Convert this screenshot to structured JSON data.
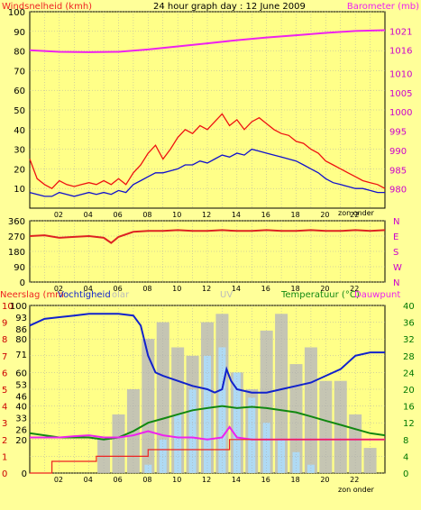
{
  "header": {
    "left_label": "Windsnelheid (kmh)",
    "title": "24 hour graph day : 12 June 2009",
    "right_label": "Barometer (mb)"
  },
  "colors": {
    "background": "#ffff99",
    "plot_bg": "#ffff88",
    "grid": "#aaaaaa",
    "wind_gust": "#ee1111",
    "wind_avg": "#1111cc",
    "barometer": "#ee22ee",
    "wind_dir": "#dd2222",
    "humidity": "#1122cc",
    "temperature": "#118811",
    "dewpoint": "#ee22ee",
    "rain": "#ee2222",
    "solar": "#bbbbbb",
    "uv": "#aaddff",
    "right_axis_text": "#cc00cc",
    "green_axis_text": "#007700"
  },
  "chart_data": [
    {
      "type": "line",
      "x_ticks": [
        "02",
        "04",
        "06",
        "08",
        "10",
        "12",
        "14",
        "16",
        "18",
        "20",
        "22"
      ],
      "x_end_label": "zon onder",
      "x_range_hours": [
        0,
        24
      ],
      "y_left": {
        "label": "Windsnelheid (kmh)",
        "ticks": [
          10,
          20,
          30,
          40,
          50,
          60,
          70,
          80,
          90,
          100
        ],
        "ylim": [
          0,
          100
        ]
      },
      "y_right": {
        "label": "Barometer (mb)",
        "ticks": [
          980,
          985,
          990,
          995,
          1000,
          1005,
          1010,
          1016,
          1021
        ],
        "ylim": [
          975,
          1026
        ]
      },
      "series": [
        {
          "name": "gust",
          "axis": "left",
          "hours": [
            0,
            0.5,
            1,
            1.5,
            2,
            2.5,
            3,
            3.5,
            4,
            4.5,
            5,
            5.5,
            6,
            6.5,
            7,
            7.5,
            8,
            8.5,
            9,
            9.5,
            10,
            10.5,
            11,
            11.5,
            12,
            12.5,
            13,
            13.5,
            14,
            14.5,
            15,
            15.5,
            16,
            16.5,
            17,
            17.5,
            18,
            18.5,
            19,
            19.5,
            20,
            20.5,
            21,
            21.5,
            22,
            22.5,
            23,
            23.5,
            24
          ],
          "values": [
            25,
            15,
            12,
            10,
            14,
            12,
            11,
            12,
            13,
            12,
            14,
            12,
            15,
            12,
            18,
            22,
            28,
            32,
            25,
            30,
            36,
            40,
            38,
            42,
            40,
            44,
            48,
            42,
            45,
            40,
            44,
            46,
            43,
            40,
            38,
            37,
            34,
            33,
            30,
            28,
            24,
            22,
            20,
            18,
            16,
            14,
            13,
            12,
            10
          ]
        },
        {
          "name": "average",
          "axis": "left",
          "hours": [
            0,
            0.5,
            1,
            1.5,
            2,
            2.5,
            3,
            3.5,
            4,
            4.5,
            5,
            5.5,
            6,
            6.5,
            7,
            7.5,
            8,
            8.5,
            9,
            9.5,
            10,
            10.5,
            11,
            11.5,
            12,
            12.5,
            13,
            13.5,
            14,
            14.5,
            15,
            15.5,
            16,
            16.5,
            17,
            17.5,
            18,
            18.5,
            19,
            19.5,
            20,
            20.5,
            21,
            21.5,
            22,
            22.5,
            23,
            23.5,
            24
          ],
          "values": [
            8,
            7,
            6,
            6,
            8,
            7,
            6,
            7,
            8,
            7,
            8,
            7,
            9,
            8,
            12,
            14,
            16,
            18,
            18,
            19,
            20,
            22,
            22,
            24,
            23,
            25,
            27,
            26,
            28,
            27,
            30,
            29,
            28,
            27,
            26,
            25,
            24,
            22,
            20,
            18,
            15,
            13,
            12,
            11,
            10,
            10,
            9,
            8,
            8
          ]
        },
        {
          "name": "barometer",
          "axis": "right",
          "hours": [
            0,
            2,
            4,
            6,
            8,
            10,
            12,
            14,
            16,
            18,
            20,
            22,
            24
          ],
          "values": [
            1016,
            1015.6,
            1015.5,
            1015.6,
            1016.2,
            1017,
            1017.8,
            1018.6,
            1019.3,
            1019.9,
            1020.5,
            1021,
            1021.2
          ]
        }
      ]
    },
    {
      "type": "line",
      "x_ticks": [
        "02",
        "04",
        "06",
        "08",
        "10",
        "12",
        "14",
        "16",
        "18",
        "20",
        "22"
      ],
      "y_left": {
        "ticks": [
          0,
          90,
          180,
          270,
          360
        ],
        "ylim": [
          0,
          360
        ]
      },
      "y_right": {
        "ticks": [
          "N",
          "W",
          "S",
          "E",
          "N"
        ]
      },
      "series": [
        {
          "name": "wind direction",
          "hours": [
            0,
            1,
            2,
            3,
            4,
            5,
            5.5,
            6,
            7,
            8,
            9,
            10,
            11,
            12,
            13,
            14,
            15,
            16,
            17,
            18,
            19,
            20,
            21,
            22,
            23,
            24
          ],
          "values": [
            270,
            275,
            260,
            265,
            270,
            260,
            230,
            265,
            295,
            300,
            300,
            305,
            300,
            300,
            305,
            300,
            300,
            305,
            300,
            300,
            305,
            300,
            300,
            305,
            300,
            305
          ]
        }
      ]
    },
    {
      "type": "line",
      "x_ticks": [
        "02",
        "04",
        "06",
        "08",
        "10",
        "12",
        "14",
        "16",
        "18",
        "20",
        "22"
      ],
      "x_end_label": "zon onder",
      "axis_labels": {
        "neerslag": "Neerslag (mm",
        "vochtigheid": "Vochtigheid",
        "solar": "olar",
        "uv": "UV",
        "temperatuur": "Temperatuur (°C)",
        "dauwpunt": "Dauwpunt"
      },
      "y_left_rain": {
        "ticks": [
          0,
          1,
          2,
          3,
          4,
          5,
          6,
          7,
          8,
          9,
          10
        ],
        "ylim": [
          0,
          10
        ]
      },
      "y_left_humidity": {
        "ticks": [
          0,
          20,
          26,
          33,
          40,
          46,
          53,
          60,
          71,
          80,
          86,
          93,
          100
        ],
        "ylim": [
          0,
          100
        ]
      },
      "y_right_temp": {
        "ticks": [
          0,
          4,
          8,
          12,
          16,
          20,
          24,
          28,
          32,
          36,
          40
        ],
        "ylim": [
          0,
          40
        ]
      },
      "series": [
        {
          "name": "humidity",
          "axis": "humidity",
          "hours": [
            0,
            1,
            2,
            3,
            4,
            5,
            6,
            7,
            7.5,
            8,
            8.5,
            9,
            10,
            11,
            12,
            12.5,
            13,
            13.3,
            13.6,
            14,
            15,
            16,
            17,
            18,
            19,
            20,
            21,
            22,
            23,
            24
          ],
          "values": [
            88,
            92,
            93,
            94,
            95,
            95,
            95,
            94,
            88,
            70,
            60,
            58,
            55,
            52,
            50,
            48,
            50,
            62,
            55,
            50,
            48,
            48,
            50,
            52,
            54,
            58,
            62,
            70,
            72,
            72
          ]
        },
        {
          "name": "temperature",
          "axis": "temp",
          "hours": [
            0,
            1,
            2,
            3,
            4,
            5,
            6,
            7,
            8,
            9,
            10,
            11,
            12,
            13,
            14,
            15,
            16,
            17,
            18,
            19,
            20,
            21,
            22,
            23,
            24
          ],
          "values": [
            9.5,
            9,
            8.5,
            8.5,
            8.5,
            8,
            8.5,
            10,
            12,
            13,
            14,
            15,
            15.5,
            16,
            15.5,
            15.8,
            15.5,
            15,
            14.5,
            13.5,
            12.5,
            11.5,
            10.5,
            9.5,
            9
          ]
        },
        {
          "name": "dewpoint",
          "axis": "temp",
          "hours": [
            0,
            1,
            2,
            3,
            4,
            5,
            6,
            7,
            8,
            9,
            10,
            11,
            12,
            13,
            13.5,
            14,
            15,
            16,
            17,
            18,
            19,
            20,
            21,
            22,
            23,
            24
          ],
          "values": [
            8.5,
            8.5,
            8.5,
            8.8,
            9,
            8.5,
            8.5,
            9,
            10,
            9,
            8.5,
            8.5,
            8,
            8.5,
            11,
            8.5,
            8,
            8,
            8,
            8,
            8,
            8,
            8,
            8,
            8,
            8
          ]
        },
        {
          "name": "rain",
          "axis": "rain",
          "hours": [
            0,
            1,
            1.5,
            4,
            4.5,
            7.5,
            8,
            13,
            13.5,
            24
          ],
          "values": [
            0,
            0,
            0.7,
            0.7,
            1.0,
            1.0,
            1.4,
            1.4,
            2.0,
            2.0
          ]
        },
        {
          "name": "solar",
          "axis": "temp",
          "hours": [
            5,
            6,
            7,
            8,
            9,
            10,
            11,
            12,
            13,
            14,
            15,
            16,
            17,
            18,
            19,
            20,
            21,
            22,
            23
          ],
          "values": [
            8,
            14,
            20,
            32,
            36,
            30,
            28,
            36,
            38,
            24,
            20,
            34,
            38,
            26,
            30,
            22,
            22,
            14,
            6
          ]
        },
        {
          "name": "uv",
          "axis": "temp",
          "hours": [
            8,
            9,
            10,
            11,
            12,
            13,
            14,
            15,
            16,
            17,
            18,
            19,
            20
          ],
          "values": [
            2,
            8,
            14,
            20,
            28,
            30,
            24,
            18,
            12,
            8,
            5,
            2,
            0
          ]
        }
      ]
    }
  ]
}
